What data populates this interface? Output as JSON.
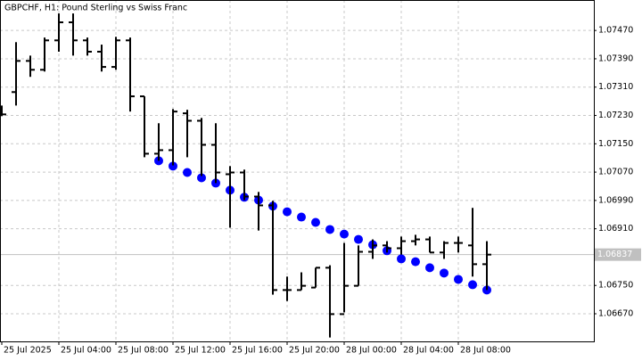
{
  "chart_data": {
    "type": "ohlc",
    "title": "GBPCHF, H1:  Pound Sterling vs Swiss Franc",
    "categories": [
      "25 Jul 2025",
      null,
      null,
      null,
      "25 Jul 04:00",
      null,
      null,
      null,
      "25 Jul 08:00",
      null,
      null,
      null,
      "25 Jul 12:00",
      null,
      null,
      null,
      "25 Jul 16:00",
      null,
      null,
      null,
      "25 Jul 20:00",
      null,
      null,
      null,
      "28 Jul 00:00",
      null,
      null,
      null,
      "28 Jul 04:00",
      null,
      null,
      null,
      "28 Jul 08:00",
      null,
      null
    ],
    "open": [
      1.07241,
      1.07296,
      1.07384,
      1.07359,
      1.07442,
      1.07493,
      1.07442,
      1.0741,
      1.07367,
      1.07442,
      1.07284,
      1.07122,
      1.07132,
      1.07236,
      1.07215,
      1.07147,
      1.07064,
      1.07069,
      1.07001,
      1.06976,
      1.06737,
      1.06737,
      1.06744,
      1.068,
      1.06669,
      1.06749,
      1.06845,
      1.06863,
      1.06855,
      1.06875,
      1.0688,
      1.06843,
      1.0687,
      1.06863,
      1.0681
    ],
    "high": [
      1.07258,
      1.07437,
      1.07399,
      1.0745,
      1.07518,
      1.07518,
      1.0745,
      1.0743,
      1.07452,
      1.0745,
      1.07284,
      1.07208,
      1.07248,
      1.07246,
      1.07223,
      1.07208,
      1.07087,
      1.07077,
      1.07014,
      1.06989,
      1.06775,
      1.06787,
      1.068,
      1.06807,
      1.0687,
      1.06863,
      1.0688,
      1.06875,
      1.06888,
      1.06893,
      1.06888,
      1.06875,
      1.06888,
      1.06969,
      1.06875
    ],
    "low": [
      1.07228,
      1.07258,
      1.07339,
      1.07354,
      1.0741,
      1.07399,
      1.07399,
      1.07354,
      1.07359,
      1.07241,
      1.07112,
      1.07102,
      1.07089,
      1.07112,
      1.07059,
      1.07039,
      1.06913,
      1.06991,
      1.06905,
      1.06724,
      1.06706,
      1.06737,
      1.06744,
      1.06603,
      1.06674,
      1.06749,
      1.06825,
      1.06843,
      1.06837,
      1.06863,
      1.06843,
      1.06825,
      1.06843,
      1.06775,
      1.06737
    ],
    "close": [
      1.07233,
      1.07384,
      1.07359,
      1.07442,
      1.07493,
      1.07442,
      1.0741,
      1.07367,
      1.07442,
      1.07284,
      1.07122,
      1.07132,
      1.07241,
      1.07215,
      1.07147,
      1.07069,
      1.07069,
      1.07001,
      1.06976,
      1.06737,
      1.06737,
      1.06749,
      1.068,
      1.06669,
      1.06749,
      1.06845,
      1.06863,
      1.06855,
      1.06875,
      1.0688,
      1.06843,
      1.0687,
      1.0687,
      1.0681,
      1.06837
    ],
    "bar_color": "#000000",
    "dots": [
      null,
      null,
      null,
      null,
      null,
      null,
      null,
      null,
      null,
      null,
      null,
      1.07102,
      1.07087,
      1.07069,
      1.07054,
      1.07039,
      1.07019,
      1.06999,
      1.06991,
      1.06974,
      1.06958,
      1.06943,
      1.06928,
      1.06908,
      1.06895,
      1.0688,
      1.06865,
      1.06848,
      1.06825,
      1.06817,
      1.068,
      1.06785,
      1.06767,
      1.06752,
      1.06737
    ],
    "dot_color": "#0000ff",
    "last_price": 1.06837,
    "ylim": [
      1.06592,
      1.07556
    ],
    "yticks": [
      {
        "value": 1.0747,
        "label": "1.07470"
      },
      {
        "value": 1.0739,
        "label": "1.07390"
      },
      {
        "value": 1.0731,
        "label": "1.07310"
      },
      {
        "value": 1.0723,
        "label": "1.07230"
      },
      {
        "value": 1.0715,
        "label": "1.07150"
      },
      {
        "value": 1.0707,
        "label": "1.07070"
      },
      {
        "value": 1.0699,
        "label": "1.06990"
      },
      {
        "value": 1.0691,
        "label": "1.06910"
      },
      {
        "value": 1.0675,
        "label": "1.06750"
      },
      {
        "value": 1.0667,
        "label": "1.06670"
      }
    ],
    "grid": true
  }
}
